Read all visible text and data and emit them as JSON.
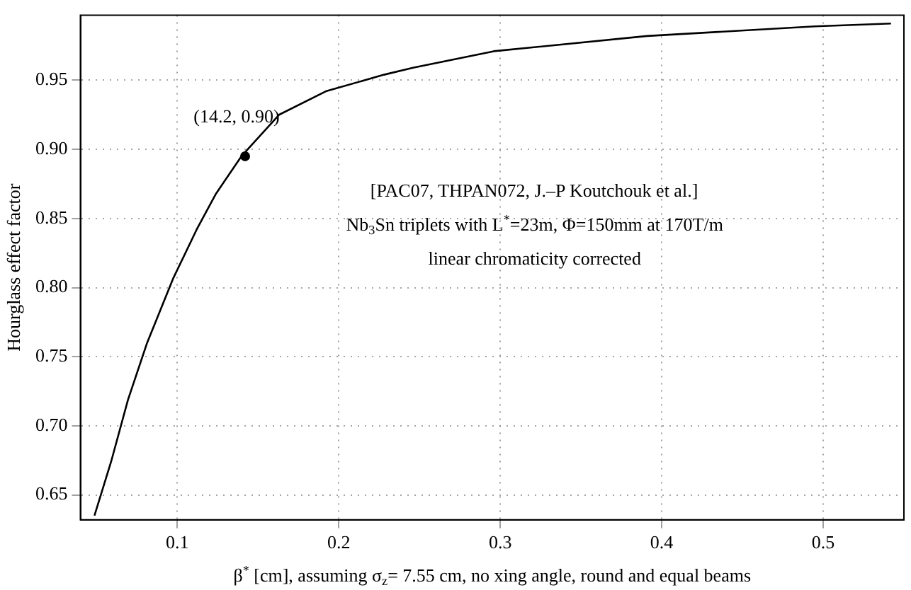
{
  "chart_data": {
    "type": "line",
    "xlabel": "β$^{*}$ [cm], assuming σ$_{z}$= 7.55 cm, no xing angle, round and equal beams",
    "ylabel": "Hourglass effect factor",
    "xlim": [
      0.04,
      0.55
    ],
    "ylim": [
      0.632,
      0.997
    ],
    "xticks": [
      0.1,
      0.2,
      0.3,
      0.4,
      0.5
    ],
    "yticks": [
      0.65,
      {
        "value": 0.7,
        "label": "0.70"
      },
      0.75,
      {
        "value": 0.8,
        "label": "0.80"
      },
      0.85,
      {
        "value": 0.9,
        "label": "0.90"
      },
      0.95
    ],
    "grid": true,
    "line_style": "solid",
    "series": [
      {
        "color": "#000000",
        "marker": "none",
        "x": [
          0.0487,
          0.059,
          0.0695,
          0.0813,
          0.0976,
          0.112,
          0.124,
          0.1397,
          0.163,
          0.192,
          0.228,
          0.246,
          0.296,
          0.391,
          0.495,
          0.542
        ],
        "values": [
          0.635,
          0.674,
          0.719,
          0.76,
          0.807,
          0.842,
          0.868,
          0.895,
          0.925,
          0.942,
          0.954,
          0.959,
          0.971,
          0.982,
          0.989,
          0.991
        ]
      },
      {
        "type": "scatter",
        "color": "#000000",
        "marker": "circle",
        "x": [
          0.142
        ],
        "values": [
          0.895
        ]
      }
    ],
    "annotations": [
      {
        "text": "(14.2, 0.90)",
        "x": 0.142,
        "y": 0.895
      },
      "[PAC07, THPAN072, J.–P Koutchouk et al.]",
      "Nb$_{3}$Sn triplets with L$^{*}$=23m, Φ=150mm at 170T/m",
      "linear chromaticity corrected"
    ]
  }
}
